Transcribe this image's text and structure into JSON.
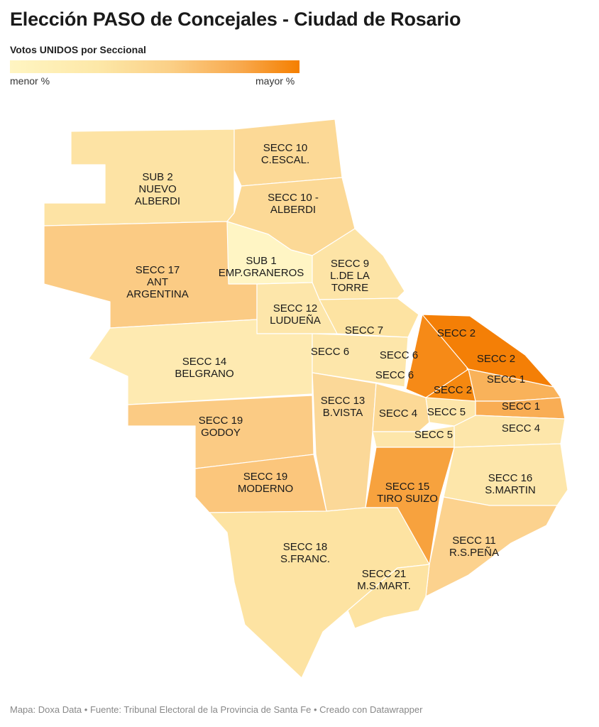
{
  "title": "Elección PASO de Concejales - Ciudad de Rosario",
  "legend": {
    "title": "Votos UNIDOS por Seccional",
    "min_label": "menor %",
    "max_label": "mayor %",
    "scale_colors": [
      "#fff5c2",
      "#f57f00"
    ]
  },
  "regions": {
    "sub2": [
      "SUB 2",
      "NUEVO",
      "ALBERDI"
    ],
    "secc10_cescal": [
      "SECC 10",
      "C.ESCAL."
    ],
    "secc10_alberdi": [
      "SECC 10 -",
      "ALBERDI"
    ],
    "sub1": [
      "SUB 1",
      "EMP.GRANEROS"
    ],
    "secc17": [
      "SECC 17",
      "ANT",
      "ARGENTINA"
    ],
    "secc9": [
      "SECC 9",
      "L.DE LA",
      "TORRE"
    ],
    "secc12": [
      "SECC 12",
      "LUDUEÑA"
    ],
    "secc7": [
      "SECC 7"
    ],
    "secc6_a": [
      "SECC 6"
    ],
    "secc6_b": [
      "SECC 6"
    ],
    "secc6_c": [
      "SECC 6"
    ],
    "secc2_a": [
      "SECC 2"
    ],
    "secc2_b": [
      "SECC 2"
    ],
    "secc2_c": [
      "SECC 2"
    ],
    "secc1_a": [
      "SECC 1"
    ],
    "secc1_b": [
      "SECC 1"
    ],
    "secc14": [
      "SECC 14",
      "BELGRANO"
    ],
    "secc13": [
      "SECC 13",
      "B.VISTA"
    ],
    "secc4_a": [
      "SECC 4"
    ],
    "secc4_b": [
      "SECC 4"
    ],
    "secc5_a": [
      "SECC 5"
    ],
    "secc5_b": [
      "SECC 5"
    ],
    "secc19_godoy": [
      "SECC 19",
      "GODOY"
    ],
    "secc19_moderno": [
      "SECC 19",
      "MODERNO"
    ],
    "secc15": [
      "SECC 15",
      "TIRO SUIZO"
    ],
    "secc16": [
      "SECC 16",
      "S.MARTIN"
    ],
    "secc11": [
      "SECC 11",
      "R.S.PEÑA"
    ],
    "secc18": [
      "SECC 18",
      "S.FRANC."
    ],
    "secc21": [
      "SECC 21",
      "M.S.MART."
    ]
  },
  "footer": "Mapa: Doxa Data • Fuente: Tribunal Electoral de la Provincia de Santa Fe • Creado con Datawrapper"
}
